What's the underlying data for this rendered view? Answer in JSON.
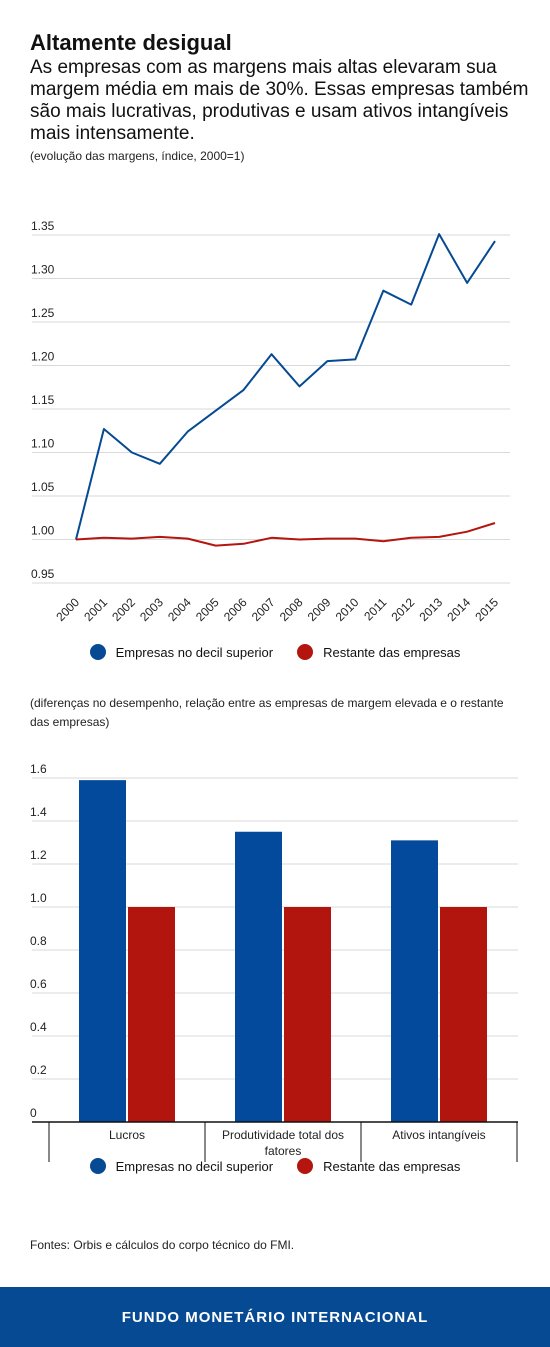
{
  "header": {
    "title": "Altamente desigual",
    "subtitle": "As empresas com as margens mais altas elevaram sua margem média em mais de 30%. Essas empresas também são mais lucrativas, produtivas e usam ativos intangíveis mais intensamente.",
    "note": "(evolução das margens, índice, 2000=1)"
  },
  "legend": {
    "top": "Empresas no decil superior",
    "rest": "Restante das empresas"
  },
  "colors": {
    "top": "#064a93",
    "rest": "#b5150f",
    "top_bar": "#044a9c",
    "rest_bar": "#b1150d"
  },
  "chart_data": [
    {
      "type": "line",
      "ylim": [
        0.95,
        1.35
      ],
      "yticks": [
        "1.35",
        "1.30",
        "1.25",
        "1.20",
        "1.15",
        "1.10",
        "1.05",
        "1.00",
        "0.95"
      ],
      "x": [
        "2000",
        "2001",
        "2002",
        "2003",
        "2004",
        "2005",
        "2006",
        "2007",
        "2008",
        "2009",
        "2010",
        "2011",
        "2012",
        "2013",
        "2014",
        "2015"
      ],
      "series": [
        {
          "name": "Empresas no decil superior",
          "values": [
            1.0,
            1.127,
            1.1,
            1.087,
            1.124,
            1.148,
            1.172,
            1.213,
            1.176,
            1.205,
            1.207,
            1.286,
            1.27,
            1.351,
            1.295,
            1.343
          ]
        },
        {
          "name": "Restante das empresas",
          "values": [
            1.0,
            1.002,
            1.001,
            1.003,
            1.001,
            0.993,
            0.995,
            1.002,
            1.0,
            1.001,
            1.001,
            0.998,
            1.002,
            1.003,
            1.009,
            1.019
          ]
        }
      ],
      "grid": true
    },
    {
      "type": "bar",
      "note": "(diferenças no desempenho, relação entre as empresas de margem elevada e o restante das empresas)",
      "ylim": [
        0,
        1.6
      ],
      "yticks": [
        "1.6",
        "1.4",
        "1.2",
        "1.0",
        "0.8",
        "0.6",
        "0.4",
        "0.2",
        "0"
      ],
      "categories": [
        "Lucros",
        "Produtividade total dos fatores",
        "Ativos intangíveis"
      ],
      "category_lines": [
        [
          "Lucros"
        ],
        [
          "Produtividade total dos",
          "fatores"
        ],
        [
          "Ativos intangíveis"
        ]
      ],
      "series": [
        {
          "name": "Empresas no decil superior",
          "values": [
            1.59,
            1.35,
            1.31
          ]
        },
        {
          "name": "Restante das empresas",
          "values": [
            1.0,
            1.0,
            1.0
          ]
        }
      ],
      "grid": true
    }
  ],
  "source": "Fontes: Orbis e cálculos do corpo técnico do FMI.",
  "footer": "FUNDO MONETÁRIO INTERNACIONAL"
}
